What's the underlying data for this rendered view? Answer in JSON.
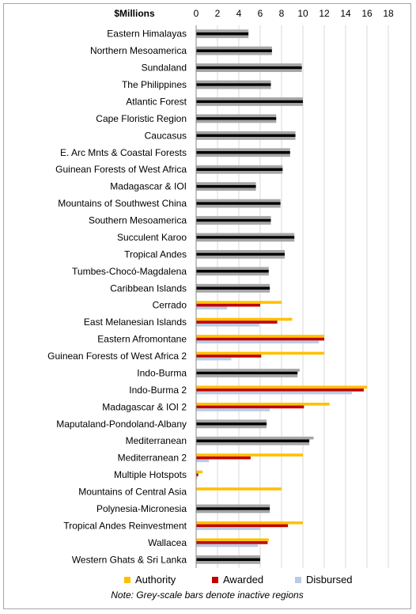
{
  "chart_data": {
    "type": "bar",
    "orientation": "horizontal",
    "units_label": "$Millions",
    "xlim": [
      0,
      18
    ],
    "xticks": [
      "0",
      "2",
      "4",
      "6",
      "8",
      "10",
      "12",
      "14",
      "16",
      "18"
    ],
    "grid": true,
    "legend_placement": "bottom",
    "note": "Note:  Grey-scale bars denote inactive regions",
    "categories": [
      "Eastern Himalayas",
      "Northern Mesoamerica",
      "Sundaland",
      "The Philippines",
      "Atlantic Forest",
      "Cape Floristic Region",
      "Caucasus",
      "E. Arc Mnts & Coastal Forests",
      "Guinean Forests of West Africa",
      "Madagascar & IOI",
      "Mountains of Southwest China",
      "Southern Mesoamerica",
      "Succulent Karoo",
      "Tropical Andes ",
      "Tumbes-Chocó-Magdalena",
      "Caribbean Islands",
      "Cerrado",
      "East Melanesian Islands",
      "Eastern Afromontane",
      "Guinean Forests of West Africa 2",
      "Indo-Burma",
      "Indo-Burma 2",
      "Madagascar & IOI 2",
      "Maputaland-Pondoland-Albany",
      "Mediterranean",
      "Mediterranean 2",
      "Multiple Hotspots",
      "Mountains of Central Asia",
      "Polynesia-Micronesia",
      "Tropical Andes Reinvestment",
      "Wallacea",
      "Western Ghats & Sri Lanka"
    ],
    "inactive": [
      true,
      true,
      true,
      true,
      true,
      true,
      true,
      true,
      true,
      true,
      true,
      true,
      true,
      true,
      true,
      true,
      false,
      false,
      false,
      false,
      true,
      false,
      false,
      true,
      true,
      false,
      false,
      false,
      true,
      false,
      false,
      true
    ],
    "series": [
      {
        "name": "Authority",
        "values": [
          4.9,
          7.1,
          9.9,
          7.0,
          10.0,
          7.5,
          9.3,
          8.8,
          8.1,
          5.6,
          7.9,
          7.0,
          9.2,
          8.3,
          6.8,
          6.9,
          8.0,
          9.0,
          12.0,
          12.0,
          9.7,
          16.0,
          12.5,
          6.6,
          11.0,
          10.0,
          0.6,
          8.0,
          6.9,
          10.0,
          6.8,
          6.0
        ]
      },
      {
        "name": "Awarded",
        "values": [
          4.9,
          7.1,
          9.9,
          7.0,
          10.0,
          7.5,
          9.3,
          8.8,
          8.1,
          5.6,
          7.9,
          7.0,
          9.2,
          8.3,
          6.8,
          6.9,
          6.0,
          7.6,
          12.0,
          6.1,
          9.5,
          15.7,
          10.1,
          6.6,
          10.6,
          5.1,
          0.2,
          0.0,
          6.9,
          8.6,
          6.7,
          6.0
        ]
      },
      {
        "name": "Disbursed",
        "values": [
          4.9,
          7.1,
          9.9,
          7.0,
          10.0,
          7.5,
          9.3,
          8.8,
          8.1,
          5.6,
          7.9,
          7.0,
          9.2,
          8.3,
          6.8,
          6.9,
          2.9,
          5.9,
          11.5,
          3.3,
          9.5,
          14.6,
          6.9,
          6.6,
          10.6,
          1.2,
          0.1,
          0.0,
          6.9,
          6.0,
          5.8,
          6.0
        ]
      }
    ],
    "colors": {
      "authority": "#ffc000",
      "awarded": "#c00000",
      "disbursed": "#b8cce4",
      "inactive_light": "#a6a6a6",
      "inactive_dark": "#000000",
      "grid": "#d9d9d9"
    }
  }
}
